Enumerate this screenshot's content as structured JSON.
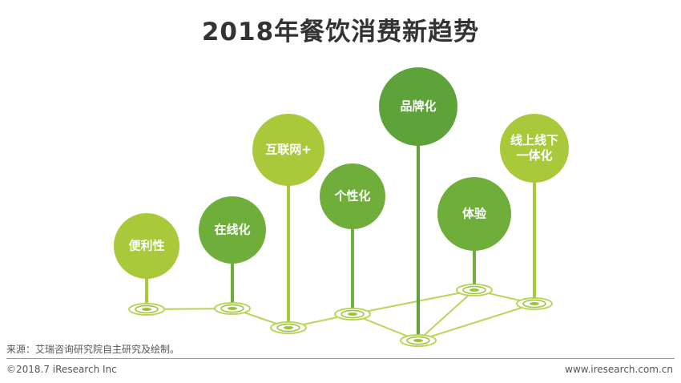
{
  "title": "2018年餐饮消费新趋势",
  "trends": [
    {
      "lines": [
        "便利性"
      ],
      "color": "#a9c93a"
    },
    {
      "lines": [
        "在线化"
      ],
      "color": "#6fae3a"
    },
    {
      "lines": [
        "互联网+"
      ],
      "color": "#a9c93a"
    },
    {
      "lines": [
        "个性化"
      ],
      "color": "#6fae3a"
    },
    {
      "lines": [
        "品牌化"
      ],
      "color": "#5ea33a"
    },
    {
      "lines": [
        "体验"
      ],
      "color": "#6fae3a"
    },
    {
      "lines": [
        "线上线下",
        "一体化"
      ],
      "color": "#a9c93a"
    }
  ],
  "footer": {
    "source": "来源：艾瑞咨询研究院自主研究及绘制。",
    "copyright": "©2018.7 iResearch Inc",
    "website": "www.iresearch.com.cn"
  }
}
